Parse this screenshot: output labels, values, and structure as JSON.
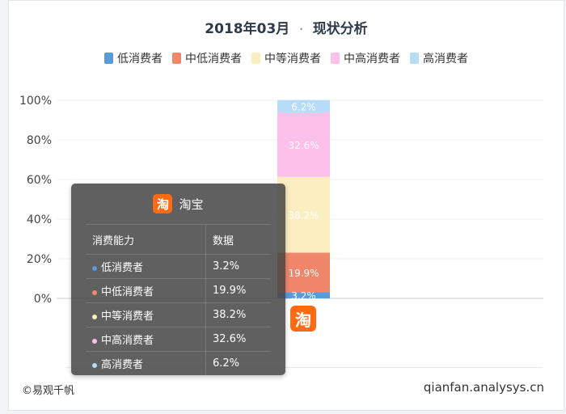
{
  "title_date": "2018年03月",
  "title_sep": "·",
  "title_main": "现状分析",
  "legend": [
    {
      "label": "低消费者",
      "color": "#5b9bd5"
    },
    {
      "label": "中低消费者",
      "color": "#f0866a"
    },
    {
      "label": "中等消费者",
      "color": "#fbeec0"
    },
    {
      "label": "中高消费者",
      "color": "#fdc0ea"
    },
    {
      "label": "高消费者",
      "color": "#b6dcf8"
    }
  ],
  "chart_data": {
    "type": "bar",
    "stacked": true,
    "percent": true,
    "categories": [
      "淘宝"
    ],
    "series": [
      {
        "name": "低消费者",
        "values": [
          3.2
        ],
        "label": "3.2%"
      },
      {
        "name": "中低消费者",
        "values": [
          19.9
        ],
        "label": "19.9%"
      },
      {
        "name": "中等消费者",
        "values": [
          38.2
        ],
        "label": "38.2%"
      },
      {
        "name": "中高消费者",
        "values": [
          32.6
        ],
        "label": "32.6%"
      },
      {
        "name": "高消费者",
        "values": [
          6.2
        ],
        "label": "6.2%"
      }
    ],
    "yticks": [
      "0%",
      "20%",
      "40%",
      "60%",
      "80%",
      "100%"
    ],
    "ylim": [
      0,
      100
    ],
    "grid": true,
    "legend_position": "top"
  },
  "category_logo_glyph": "淘",
  "tooltip": {
    "title": "淘宝",
    "logo_glyph": "淘",
    "col1": "消费能力",
    "col2": "数据",
    "rows": [
      {
        "name": "低消费者",
        "value": "3.2%"
      },
      {
        "name": "中低消费者",
        "value": "19.9%"
      },
      {
        "name": "中等消费者",
        "value": "38.2%"
      },
      {
        "name": "中高消费者",
        "value": "32.6%"
      },
      {
        "name": "高消费者",
        "value": "6.2%"
      }
    ]
  },
  "footer_left": "©易观千帆",
  "footer_right": "qianfan.analysys.cn"
}
